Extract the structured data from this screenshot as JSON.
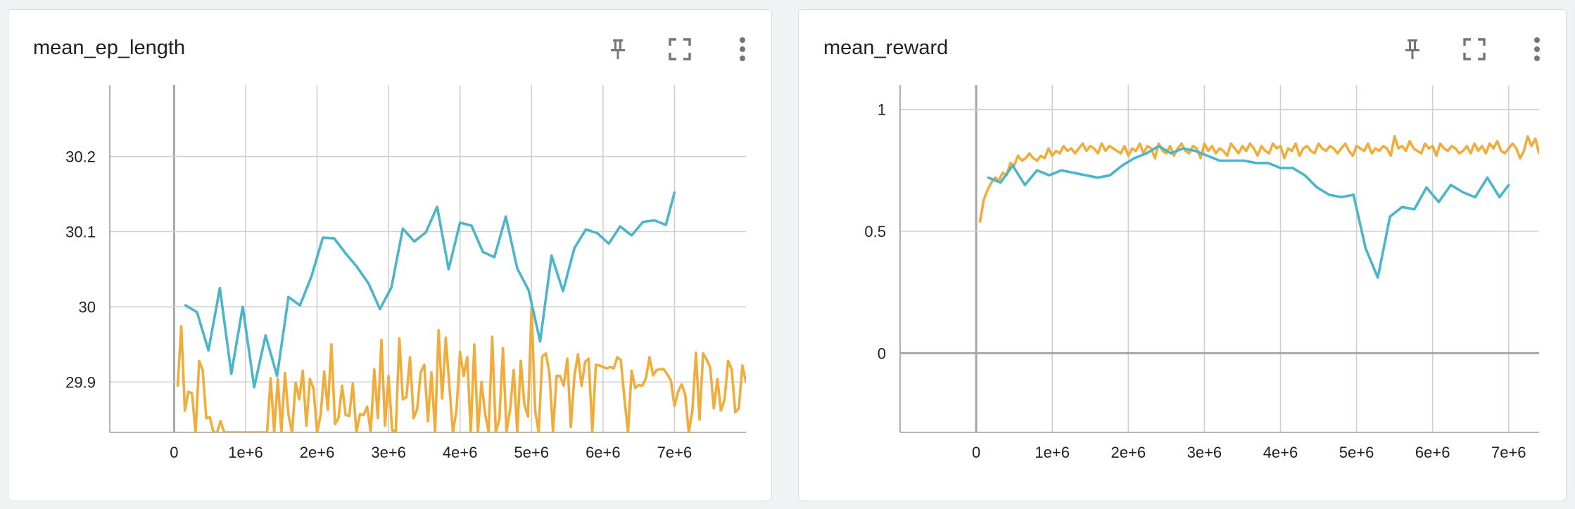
{
  "cards": [
    {
      "title": "mean_ep_length",
      "actions": {
        "pin": "pin-icon",
        "fullscreen": "fullscreen-icon",
        "more": "more-vert-icon"
      }
    },
    {
      "title": "mean_reward",
      "actions": {
        "pin": "pin-icon",
        "fullscreen": "fullscreen-icon",
        "more": "more-vert-icon"
      }
    }
  ],
  "colors": {
    "series_orange": "#f0ad3c",
    "series_teal": "#4bb5c9",
    "grid": "#d0d0d0",
    "zero_axis": "#a6a6a6"
  },
  "chart_data": [
    {
      "type": "line",
      "title": "mean_ep_length",
      "xlabel": "",
      "ylabel": "",
      "xlim": [
        -900000.0,
        8000000.0
      ],
      "ylim": [
        29.833,
        30.295
      ],
      "x_ticks": [
        0,
        1000000,
        2000000,
        3000000,
        4000000,
        5000000,
        6000000,
        7000000
      ],
      "x_tick_labels": [
        "0",
        "1e+6",
        "2e+6",
        "3e+6",
        "4e+6",
        "5e+6",
        "6e+6",
        "7e+6"
      ],
      "y_ticks": [
        29.9,
        30,
        30.1,
        30.2
      ],
      "y_tick_labels": [
        "29.9",
        "30",
        "30.1",
        "30.2"
      ],
      "grid": true,
      "series": [
        {
          "color": "#4bb5c9",
          "x": [
            160000,
            320000,
            480000,
            640000,
            800000,
            960000,
            1120000,
            1280000,
            1440000,
            1600000,
            1760000,
            1920000,
            2080000,
            2240000,
            2400000,
            2560000,
            2720000,
            2880000,
            3040000,
            3200000,
            3360000,
            3520000,
            3680000,
            3840000,
            4000000,
            4160000,
            4320000,
            4480000,
            4640000,
            4800000,
            4960000,
            5120000,
            5280000,
            5440000,
            5600000,
            5760000,
            5920000,
            6080000,
            6240000,
            6400000,
            6560000,
            6720000,
            6880000,
            7000000
          ],
          "y": [
            30.002,
            29.993,
            29.942,
            30.025,
            29.911,
            30.0,
            29.893,
            29.962,
            29.908,
            30.013,
            30.002,
            30.04,
            30.092,
            30.091,
            30.071,
            30.053,
            30.031,
            29.997,
            30.026,
            30.104,
            30.087,
            30.099,
            30.133,
            30.05,
            30.112,
            30.108,
            30.073,
            30.066,
            30.12,
            30.051,
            30.022,
            29.954,
            30.068,
            30.021,
            30.078,
            30.103,
            30.098,
            30.084,
            30.107,
            30.095,
            30.113,
            30.115,
            30.109,
            30.152
          ]
        },
        {
          "color": "#f0ad3c",
          "x": [
            50000,
            100000,
            150000,
            200000,
            250000,
            300000,
            350000,
            400000,
            450000,
            500000,
            550000,
            600000,
            650000,
            700000,
            750000,
            800000,
            850000,
            900000,
            950000,
            1000000,
            1050000,
            1100000,
            1150000,
            1200000,
            1250000,
            1300000,
            1350000,
            1400000,
            1450000,
            1500000,
            1550000,
            1600000,
            1650000,
            1700000,
            1750000,
            1800000,
            1850000,
            1900000,
            1950000,
            2000000,
            2050000,
            2100000,
            2150000,
            2200000,
            2250000,
            2300000,
            2350000,
            2400000,
            2450000,
            2500000,
            2550000,
            2600000,
            2650000,
            2700000,
            2750000,
            2800000,
            2850000,
            2900000,
            2950000,
            3000000,
            3050000,
            3100000,
            3150000,
            3200000,
            3250000,
            3300000,
            3350000,
            3400000,
            3450000,
            3500000,
            3550000,
            3600000,
            3650000,
            3700000,
            3750000,
            3800000,
            3850000,
            3900000,
            3950000,
            4000000,
            4050000,
            4100000,
            4150000,
            4200000,
            4250000,
            4300000,
            4350000,
            4400000,
            4450000,
            4500000,
            4550000,
            4600000,
            4650000,
            4700000,
            4750000,
            4800000,
            4850000,
            4900000,
            4950000,
            5000000,
            5050000,
            5100000,
            5150000,
            5200000,
            5250000,
            5300000,
            5350000,
            5400000,
            5450000,
            5500000,
            5550000,
            5600000,
            5650000,
            5700000,
            5750000,
            5800000,
            5850000,
            5900000,
            5950000,
            6000000,
            6050000,
            6100000,
            6150000,
            6200000,
            6250000,
            6300000,
            6350000,
            6400000,
            6450000,
            6500000,
            6550000,
            6600000,
            6650000,
            6700000,
            6750000,
            6800000,
            6850000,
            6900000,
            6950000,
            7000000,
            7050000,
            7100000,
            7150000,
            7200000,
            7250000,
            7300000,
            7350000,
            7400000,
            7450000,
            7500000,
            7550000,
            7600000,
            7650000,
            7700000,
            7750000,
            7800000,
            7850000,
            7900000,
            7950000,
            8000000
          ],
          "y": [
            29.895,
            29.974,
            29.862,
            29.887,
            29.885,
            29.833,
            29.928,
            29.916,
            29.852,
            29.853,
            29.833,
            29.833,
            29.848,
            29.833,
            29.833,
            29.833,
            29.833,
            29.833,
            29.833,
            29.833,
            29.833,
            29.833,
            29.833,
            29.833,
            29.833,
            29.833,
            29.905,
            29.833,
            29.904,
            29.833,
            29.912,
            29.856,
            29.833,
            29.899,
            29.877,
            29.915,
            29.842,
            29.904,
            29.891,
            29.833,
            29.856,
            29.914,
            29.863,
            29.95,
            29.844,
            29.852,
            29.895,
            29.856,
            29.855,
            29.898,
            29.833,
            29.857,
            29.856,
            29.867,
            29.833,
            29.917,
            29.852,
            29.956,
            29.842,
            29.908,
            29.836,
            29.833,
            29.958,
            29.877,
            29.88,
            29.933,
            29.852,
            29.864,
            29.913,
            29.923,
            29.848,
            29.913,
            29.833,
            29.969,
            29.878,
            29.959,
            29.895,
            29.833,
            29.862,
            29.94,
            29.908,
            29.933,
            29.833,
            29.95,
            29.833,
            29.9,
            29.858,
            29.833,
            29.96,
            29.833,
            29.851,
            29.945,
            29.834,
            29.863,
            29.916,
            29.833,
            29.928,
            29.87,
            29.854,
            30.0,
            29.862,
            29.833,
            29.934,
            29.938,
            29.912,
            29.833,
            29.908,
            29.908,
            29.895,
            29.931,
            29.84,
            29.908,
            29.937,
            29.895,
            29.927,
            29.931,
            29.833,
            29.923,
            29.922,
            29.92,
            29.918,
            29.92,
            29.918,
            29.933,
            29.929,
            29.878,
            29.833,
            29.915,
            29.892,
            29.896,
            29.895,
            29.905,
            29.933,
            29.909,
            29.916,
            29.917,
            29.917,
            29.91,
            29.902,
            29.868,
            29.887,
            29.897,
            29.883,
            29.833,
            29.862,
            29.939,
            29.85,
            29.938,
            29.93,
            29.919,
            29.865,
            29.904,
            29.862,
            29.876,
            29.928,
            29.917,
            29.86,
            29.865,
            29.922,
            29.9
          ]
        }
      ]
    },
    {
      "type": "line",
      "title": "mean_reward",
      "xlabel": "",
      "ylabel": "",
      "xlim": [
        -1000000.0,
        7400000.0
      ],
      "ylim": [
        -0.325,
        1.1
      ],
      "x_ticks": [
        0,
        1000000,
        2000000,
        3000000,
        4000000,
        5000000,
        6000000,
        7000000
      ],
      "x_tick_labels": [
        "0",
        "1e+6",
        "2e+6",
        "3e+6",
        "4e+6",
        "5e+6",
        "6e+6",
        "7e+6"
      ],
      "y_ticks": [
        0,
        0.5,
        1
      ],
      "y_tick_labels": [
        "0",
        "0.5",
        "1"
      ],
      "grid": true,
      "series": [
        {
          "color": "#4bb5c9",
          "x": [
            160000,
            320000,
            480000,
            640000,
            800000,
            960000,
            1120000,
            1280000,
            1440000,
            1600000,
            1760000,
            1920000,
            2080000,
            2240000,
            2400000,
            2560000,
            2720000,
            2880000,
            3040000,
            3200000,
            3360000,
            3520000,
            3680000,
            3840000,
            4000000,
            4160000,
            4320000,
            4480000,
            4640000,
            4800000,
            4960000,
            5120000,
            5280000,
            5440000,
            5600000,
            5760000,
            5920000,
            6080000,
            6240000,
            6400000,
            6560000,
            6720000,
            6880000,
            7000000
          ],
          "y": [
            0.72,
            0.7,
            0.77,
            0.69,
            0.75,
            0.73,
            0.75,
            0.74,
            0.73,
            0.72,
            0.73,
            0.77,
            0.8,
            0.82,
            0.85,
            0.82,
            0.84,
            0.83,
            0.81,
            0.79,
            0.79,
            0.79,
            0.78,
            0.78,
            0.76,
            0.76,
            0.73,
            0.68,
            0.65,
            0.64,
            0.65,
            0.43,
            0.31,
            0.56,
            0.6,
            0.59,
            0.68,
            0.62,
            0.69,
            0.66,
            0.64,
            0.72,
            0.64,
            0.69
          ]
        },
        {
          "color": "#f0ad3c",
          "x": [
            50000,
            100000,
            150000,
            200000,
            250000,
            300000,
            350000,
            400000,
            450000,
            500000,
            550000,
            600000,
            650000,
            700000,
            750000,
            800000,
            850000,
            900000,
            950000,
            1000000,
            1050000,
            1100000,
            1150000,
            1200000,
            1250000,
            1300000,
            1350000,
            1400000,
            1450000,
            1500000,
            1550000,
            1600000,
            1650000,
            1700000,
            1750000,
            1800000,
            1850000,
            1900000,
            1950000,
            2000000,
            2050000,
            2100000,
            2150000,
            2200000,
            2250000,
            2300000,
            2350000,
            2400000,
            2450000,
            2500000,
            2550000,
            2600000,
            2650000,
            2700000,
            2750000,
            2800000,
            2850000,
            2900000,
            2950000,
            3000000,
            3050000,
            3100000,
            3150000,
            3200000,
            3250000,
            3300000,
            3350000,
            3400000,
            3450000,
            3500000,
            3550000,
            3600000,
            3650000,
            3700000,
            3750000,
            3800000,
            3850000,
            3900000,
            3950000,
            4000000,
            4050000,
            4100000,
            4150000,
            4200000,
            4250000,
            4300000,
            4350000,
            4400000,
            4450000,
            4500000,
            4550000,
            4600000,
            4650000,
            4700000,
            4750000,
            4800000,
            4850000,
            4900000,
            4950000,
            5000000,
            5050000,
            5100000,
            5150000,
            5200000,
            5250000,
            5300000,
            5350000,
            5400000,
            5450000,
            5500000,
            5550000,
            5600000,
            5650000,
            5700000,
            5750000,
            5800000,
            5850000,
            5900000,
            5950000,
            6000000,
            6050000,
            6100000,
            6150000,
            6200000,
            6250000,
            6300000,
            6350000,
            6400000,
            6450000,
            6500000,
            6550000,
            6600000,
            6650000,
            6700000,
            6750000,
            6800000,
            6850000,
            6900000,
            6950000,
            7000000,
            7050000,
            7100000,
            7150000,
            7200000,
            7250000,
            7300000,
            7350000,
            7400000
          ],
          "y": [
            0.54,
            0.63,
            0.67,
            0.7,
            0.72,
            0.71,
            0.74,
            0.73,
            0.78,
            0.77,
            0.81,
            0.79,
            0.8,
            0.82,
            0.8,
            0.79,
            0.81,
            0.8,
            0.84,
            0.81,
            0.83,
            0.82,
            0.85,
            0.83,
            0.84,
            0.82,
            0.84,
            0.86,
            0.83,
            0.85,
            0.84,
            0.82,
            0.86,
            0.83,
            0.85,
            0.84,
            0.83,
            0.82,
            0.85,
            0.81,
            0.84,
            0.83,
            0.86,
            0.82,
            0.85,
            0.84,
            0.8,
            0.86,
            0.83,
            0.82,
            0.85,
            0.81,
            0.84,
            0.86,
            0.83,
            0.82,
            0.85,
            0.84,
            0.8,
            0.86,
            0.83,
            0.85,
            0.82,
            0.84,
            0.83,
            0.81,
            0.86,
            0.84,
            0.82,
            0.85,
            0.83,
            0.86,
            0.84,
            0.81,
            0.85,
            0.83,
            0.82,
            0.86,
            0.84,
            0.85,
            0.8,
            0.84,
            0.83,
            0.86,
            0.81,
            0.84,
            0.85,
            0.83,
            0.82,
            0.86,
            0.84,
            0.83,
            0.85,
            0.84,
            0.82,
            0.84,
            0.86,
            0.83,
            0.81,
            0.85,
            0.84,
            0.83,
            0.86,
            0.82,
            0.84,
            0.83,
            0.85,
            0.84,
            0.81,
            0.89,
            0.84,
            0.85,
            0.83,
            0.87,
            0.84,
            0.83,
            0.82,
            0.86,
            0.84,
            0.85,
            0.81,
            0.86,
            0.84,
            0.83,
            0.85,
            0.84,
            0.82,
            0.83,
            0.85,
            0.82,
            0.86,
            0.83,
            0.85,
            0.82,
            0.86,
            0.84,
            0.87,
            0.83,
            0.82,
            0.84,
            0.86,
            0.84,
            0.8,
            0.83,
            0.89,
            0.85,
            0.88,
            0.82
          ]
        }
      ]
    }
  ]
}
